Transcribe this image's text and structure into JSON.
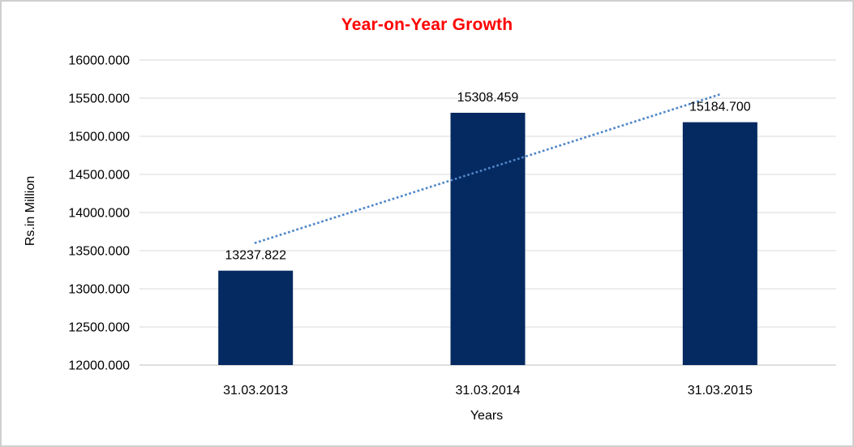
{
  "window": {
    "background": "#FFFFFF",
    "border_color": "#CFCFCF"
  },
  "chart_data": {
    "type": "bar",
    "title": "Year-on-Year Growth",
    "title_color": "#FF0000",
    "xlabel": "Years",
    "ylabel": "Rs.in Million",
    "categories": [
      "31.03.2013",
      "31.03.2014",
      "31.03.2015"
    ],
    "values": [
      13237.822,
      15308.459,
      15184.7
    ],
    "value_labels": [
      "13237.822",
      "15308.459",
      "15184.700"
    ],
    "ylim": [
      12000,
      16000
    ],
    "ytick_step": 500,
    "y_ticks": [
      "16000.000",
      "15500.000",
      "15000.000",
      "14500.000",
      "14000.000",
      "13500.000",
      "13000.000",
      "12500.000",
      "12000.000"
    ],
    "grid": true,
    "legend": "none",
    "bar_color": "#052961",
    "grid_color": "#D9D9D9",
    "axis_line_color": "#BFBFBF",
    "label_color": "#000000",
    "trendline": {
      "type": "linear",
      "style": "dotted",
      "color": "#4E86C8"
    }
  }
}
